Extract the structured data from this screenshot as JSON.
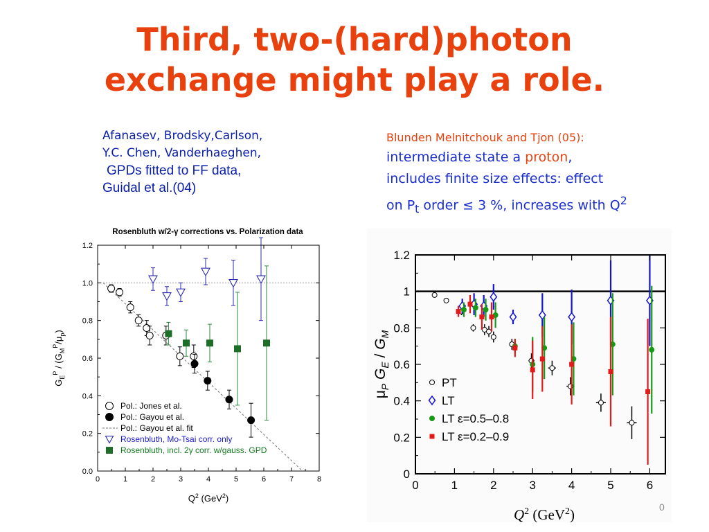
{
  "slide": {
    "title_line1": "Third, two-(hard)photon",
    "title_line2": "exchange might play a role.",
    "slide_number": "0"
  },
  "left_note": {
    "line1": "Afanasev, Brodsky,Carlson,",
    "line2": "Y.C. Chen, Vanderhaeghen,",
    "line3": "GPDs fitted to FF data,",
    "line4": "Guidal et al.(04)"
  },
  "right_note": {
    "line1": "Blunden Melnitchouk and Tjon (05):",
    "line2_pre": "intermediate state a ",
    "line2_highlight": "proton",
    "line2_post": ",",
    "line3": "includes finite size effects: effect",
    "line4_pre": "on P",
    "line4_sub": "t",
    "line4_post": " order ≤ 3 %, increases with Q",
    "line4_sup": "2"
  },
  "colors": {
    "title": "#e8410e",
    "blue_text": "#1a2ecc",
    "left_blue": "#0a1ea8",
    "rosenbluth_blue": "#2a2ab0",
    "gpd_green": "#1e6e2a",
    "lt_blue": "#1414d2",
    "lt_green": "#169a16",
    "lt_red": "#e41a1a"
  },
  "chart_data": [
    {
      "type": "scatter",
      "title": "Rosenbluth w/2-γ corrections vs. Polarization data",
      "xlabel": "Q² (GeV²)",
      "ylabel": "G_E^P / (G_M^P/μ_p)",
      "xlim": [
        0,
        8
      ],
      "ylim": [
        0,
        1.2
      ],
      "xticks": [
        0,
        1,
        2,
        3,
        4,
        5,
        6,
        7,
        8
      ],
      "yticks": [
        0.0,
        0.2,
        0.4,
        0.6,
        0.8,
        1.0,
        1.2
      ],
      "ytick_labels": [
        "0.0",
        "0.2",
        "0.4",
        "0.6",
        "0.8",
        "1.0",
        "1.2"
      ],
      "legend_position": "bottom-left",
      "series": [
        {
          "name": "Pol.: Jones et al.",
          "marker": "open-circle",
          "color": "#000000",
          "points": [
            [
              0.49,
              0.97,
              0.02
            ],
            [
              0.79,
              0.95,
              0.02
            ],
            [
              1.18,
              0.87,
              0.03
            ],
            [
              1.48,
              0.8,
              0.03
            ],
            [
              1.77,
              0.76,
              0.04
            ],
            [
              1.88,
              0.72,
              0.05
            ],
            [
              2.47,
              0.72,
              0.05
            ],
            [
              2.97,
              0.61,
              0.05
            ],
            [
              3.47,
              0.61,
              0.06
            ]
          ]
        },
        {
          "name": "Pol.: Gayou et al.",
          "marker": "filled-circle",
          "color": "#000000",
          "points": [
            [
              3.5,
              0.57,
              0.05
            ],
            [
              3.97,
              0.48,
              0.05
            ],
            [
              4.75,
              0.38,
              0.05
            ],
            [
              5.54,
              0.27,
              0.09
            ]
          ]
        },
        {
          "name": "Pol.: Gayou et al. fit",
          "marker": "dashed-line",
          "color": "#707070",
          "line": [
            [
              0.2,
              1.0
            ],
            [
              7.4,
              0.0
            ]
          ]
        },
        {
          "name": "Rosenbluth, Mo-Tsai corr. only",
          "marker": "open-triangle-down",
          "color": "#2a2ab0",
          "points": [
            [
              2.0,
              1.02,
              0.06
            ],
            [
              2.5,
              0.93,
              0.05
            ],
            [
              3.0,
              0.95,
              0.05
            ],
            [
              3.9,
              1.06,
              0.07
            ],
            [
              4.9,
              1.0,
              0.12
            ],
            [
              5.9,
              1.02,
              0.22
            ]
          ]
        },
        {
          "name": "Rosenbluth, incl. 2γ corr. w/gauss. GPD",
          "marker": "filled-square",
          "color": "#1e6e2a",
          "points": [
            [
              2.56,
              0.73,
              0.06
            ],
            [
              3.2,
              0.68,
              0.07
            ],
            [
              4.05,
              0.68,
              0.1
            ],
            [
              5.05,
              0.65,
              0.3
            ],
            [
              6.1,
              0.68,
              0.41
            ]
          ]
        }
      ]
    },
    {
      "type": "scatter",
      "xlabel": "Q² (GeV²)",
      "ylabel": "μ_p G_E / G_M",
      "xlim": [
        0,
        6.4
      ],
      "ylim": [
        0,
        1.2
      ],
      "xticks": [
        0,
        1,
        2,
        3,
        4,
        5,
        6
      ],
      "yticks": [
        0,
        0.2,
        0.4,
        0.6,
        0.8,
        1,
        1.2
      ],
      "ytick_labels": [
        "0",
        "0.2",
        "0.4",
        "0.6",
        "0.8",
        "1",
        "1.2"
      ],
      "reference_line": 1.0,
      "legend_position": "bottom-left",
      "series": [
        {
          "name": "PT",
          "marker": "open-circle",
          "color": "#000000",
          "points": [
            [
              0.49,
              0.98,
              0,
              0
            ],
            [
              0.79,
              0.95,
              0,
              0
            ],
            [
              1.18,
              0.89,
              0.02,
              0.05
            ],
            [
              1.48,
              0.8,
              0.02,
              0.08
            ],
            [
              1.77,
              0.79,
              0.03,
              0.1
            ],
            [
              1.88,
              0.78,
              0.03,
              0.1
            ],
            [
              2.0,
              0.75,
              0.03,
              0.1
            ],
            [
              2.47,
              0.71,
              0.03,
              0.12
            ],
            [
              2.97,
              0.62,
              0.04,
              0.15
            ],
            [
              3.5,
              0.58,
              0.04,
              0.2
            ],
            [
              3.97,
              0.48,
              0.05,
              0.2
            ],
            [
              4.75,
              0.39,
              0.05,
              0.25
            ],
            [
              5.54,
              0.28,
              0.09,
              0.25
            ]
          ]
        },
        {
          "name": "LT",
          "marker": "open-diamond",
          "color": "#1414d2",
          "points": [
            [
              1.2,
              0.92,
              0.04
            ],
            [
              1.5,
              0.93,
              0.06
            ],
            [
              1.75,
              0.92,
              0.06
            ],
            [
              2.0,
              0.97,
              0.07
            ],
            [
              2.5,
              0.86,
              0.04
            ],
            [
              3.25,
              0.87,
              0.12
            ],
            [
              4.0,
              0.86,
              0.15
            ],
            [
              5.0,
              0.95,
              0.22
            ],
            [
              6.0,
              0.95,
              0.25
            ]
          ]
        },
        {
          "name": "LT  ε=0.5–0.8",
          "marker": "filled-circle",
          "color": "#169a16",
          "points": [
            [
              1.24,
              0.9,
              0.04
            ],
            [
              1.54,
              0.91,
              0.05
            ],
            [
              1.8,
              0.9,
              0.06
            ],
            [
              2.05,
              0.87,
              0.07
            ],
            [
              2.55,
              0.7,
              0.04
            ],
            [
              3.0,
              0.6,
              0.15
            ],
            [
              3.3,
              0.69,
              0.17
            ],
            [
              4.05,
              0.63,
              0.2
            ],
            [
              5.05,
              0.71,
              0.28
            ],
            [
              6.05,
              0.68,
              0.35
            ]
          ]
        },
        {
          "name": "LT  ε=0.2–0.9",
          "marker": "filled-square",
          "color": "#e41a1a",
          "points": [
            [
              1.1,
              0.89,
              0.03
            ],
            [
              1.4,
              0.93,
              0.05
            ],
            [
              1.7,
              0.86,
              0.07
            ],
            [
              1.95,
              0.86,
              0.08
            ],
            [
              2.55,
              0.69,
              0.05
            ],
            [
              3.0,
              0.57,
              0.16
            ],
            [
              3.25,
              0.63,
              0.18
            ],
            [
              4.0,
              0.6,
              0.22
            ],
            [
              5.0,
              0.56,
              0.3
            ],
            [
              5.95,
              0.45,
              0.4
            ]
          ]
        }
      ]
    }
  ]
}
